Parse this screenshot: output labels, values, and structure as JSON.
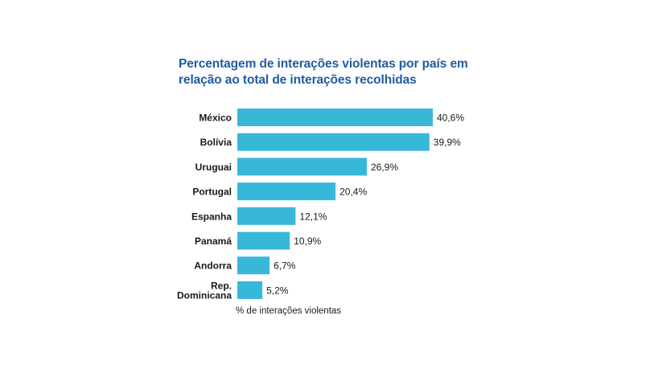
{
  "chart_data": {
    "type": "bar",
    "orientation": "horizontal",
    "title_lines": [
      "Percentagem de interações violentas por país em",
      "relação ao total de interações recolhidas"
    ],
    "categories": [
      "México",
      "Bolívia",
      "Uruguai",
      "Portugal",
      "Espanha",
      "Panamá",
      "Andorra",
      "Rep. Dominicana"
    ],
    "category_label_lines": [
      [
        "México"
      ],
      [
        "Bolívia"
      ],
      [
        "Uruguai"
      ],
      [
        "Portugal"
      ],
      [
        "Espanha"
      ],
      [
        "Panamá"
      ],
      [
        "Andorra"
      ],
      [
        "Rep.",
        "Dominicana"
      ]
    ],
    "values": [
      40.6,
      39.9,
      26.9,
      20.4,
      12.1,
      10.9,
      6.7,
      5.2
    ],
    "value_labels": [
      "40,6%",
      "39,9%",
      "26,9%",
      "20,4%",
      "12,1%",
      "10,9%",
      "6,7%",
      "5,2%"
    ],
    "xlabel": "% de interações violentas",
    "ylabel": "",
    "xlim": [
      0,
      40.6
    ],
    "grid": false,
    "bar_color": "#38b8d9",
    "title_color": "#1f5c9e"
  }
}
